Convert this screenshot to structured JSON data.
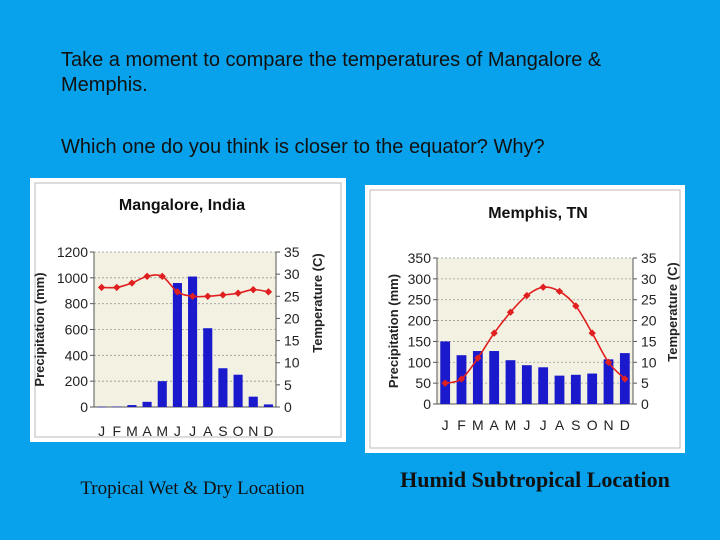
{
  "question": {
    "line1": "Take a moment to compare the temperatures of Mangalore &  Memphis.",
    "line2": "Which one do you think is closer to the equator?  Why?"
  },
  "captions": {
    "left": "Tropical Wet & Dry Location",
    "right": "Humid Subtropical Location"
  },
  "colors": {
    "background": "#08a2ec",
    "bars": "#1a1acc",
    "temperature_line": "#e02020",
    "plot_bg": "#f3f2e2"
  },
  "chart_data": [
    {
      "type": "bar",
      "title": "Mangalore, India",
      "categories": [
        "J",
        "F",
        "M",
        "A",
        "M",
        "J",
        "J",
        "A",
        "S",
        "O",
        "N",
        "D"
      ],
      "ylabel": "Precipitation (mm)",
      "y2label": "Temperature (C)",
      "ylim": [
        0,
        1200
      ],
      "y2lim": [
        0,
        35
      ],
      "yticks": [
        0,
        200,
        400,
        600,
        800,
        1000,
        1200
      ],
      "y2ticks": [
        0,
        5,
        10,
        15,
        20,
        25,
        30,
        35
      ],
      "grid": "horizontal dotted",
      "series": [
        {
          "kind": "bar",
          "axis": "left",
          "values": [
            2,
            3,
            15,
            40,
            200,
            960,
            1010,
            610,
            300,
            250,
            80,
            20
          ]
        },
        {
          "kind": "line",
          "axis": "right",
          "values": [
            27,
            27,
            28,
            29.5,
            29.5,
            26,
            25,
            25,
            25.3,
            25.7,
            26.5,
            26
          ]
        }
      ]
    },
    {
      "type": "bar",
      "title": "Memphis, TN",
      "categories": [
        "J",
        "F",
        "M",
        "A",
        "M",
        "J",
        "J",
        "A",
        "S",
        "O",
        "N",
        "D"
      ],
      "ylabel": "Precipitation (mm)",
      "y2label": "Temperature (C)",
      "ylim": [
        0,
        350
      ],
      "y2lim": [
        0,
        35
      ],
      "yticks": [
        0,
        50,
        100,
        150,
        200,
        250,
        300,
        350
      ],
      "y2ticks": [
        0,
        5,
        10,
        15,
        20,
        25,
        30,
        35
      ],
      "grid": "horizontal dotted",
      "series": [
        {
          "kind": "bar",
          "axis": "left",
          "values": [
            150,
            117,
            127,
            127,
            105,
            93,
            88,
            68,
            70,
            73,
            107,
            122
          ]
        },
        {
          "kind": "line",
          "axis": "right",
          "values": [
            5,
            6,
            11,
            17,
            22,
            26,
            28,
            27,
            23.5,
            17,
            10,
            6
          ]
        }
      ]
    }
  ]
}
